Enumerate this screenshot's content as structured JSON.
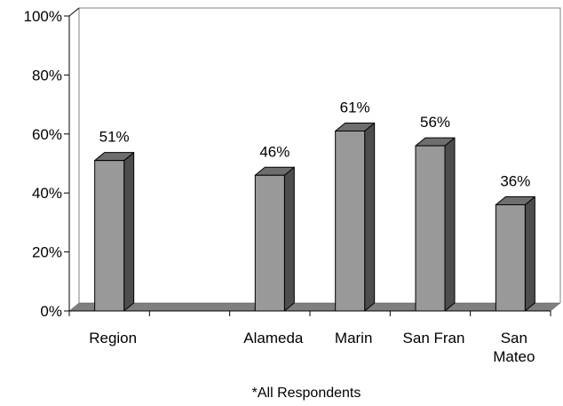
{
  "chart_data": {
    "type": "bar",
    "categories": [
      "Region",
      "",
      "Alameda",
      "Marin",
      "San Fran",
      "San Mateo"
    ],
    "category_lines": [
      [
        "Region"
      ],
      [],
      [
        "Alameda"
      ],
      [
        "Marin"
      ],
      [
        "San Fran"
      ],
      [
        "San",
        "Mateo"
      ]
    ],
    "values": [
      51,
      null,
      46,
      61,
      56,
      36
    ],
    "data_labels": [
      "51%",
      "",
      "46%",
      "61%",
      "56%",
      "36%"
    ],
    "yticks": [
      "0%",
      "20%",
      "40%",
      "60%",
      "80%",
      "100%"
    ],
    "ylim": [
      0,
      100
    ],
    "footnote": "*All Respondents",
    "grid": false,
    "style": "3d",
    "colors": {
      "bar_front": "#999999",
      "bar_top": "#6e6e6e",
      "bar_side": "#4d4d4d",
      "floor": "#7f7f7f",
      "axis": "#000000"
    }
  }
}
